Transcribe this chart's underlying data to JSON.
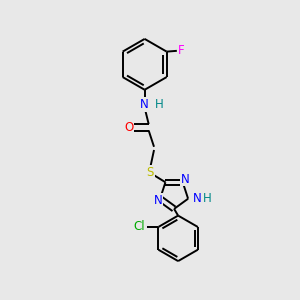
{
  "background_color": "#e8e8e8",
  "figure_size": [
    3.0,
    3.0
  ],
  "dpi": 100,
  "atom_colors": {
    "C": "#000000",
    "N": "#0000ff",
    "O": "#ff0000",
    "S": "#bbbb00",
    "H": "#008888",
    "F": "#ff00ff",
    "Cl": "#00aa00"
  },
  "bond_color": "#000000",
  "bond_width": 1.4,
  "font_size": 8.5
}
